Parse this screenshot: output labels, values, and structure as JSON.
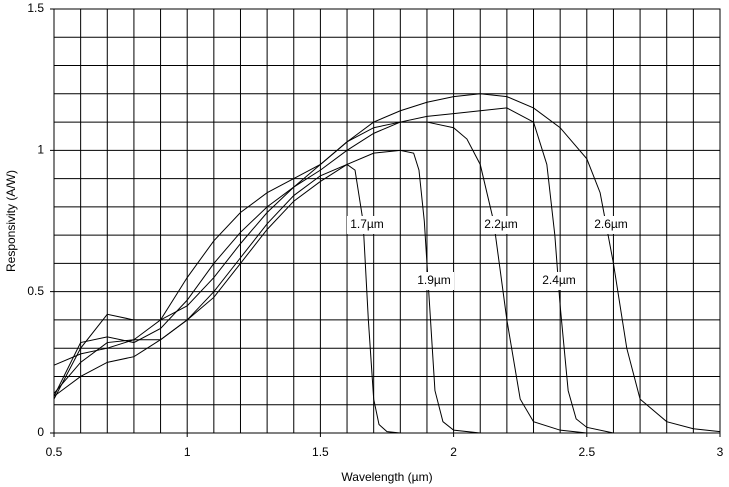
{
  "chart_data": {
    "type": "line",
    "xlabel": "Wavelength (µm)",
    "ylabel": "Responsivity (A/W)",
    "xlim": [
      0.5,
      3
    ],
    "ylim": [
      0,
      1.5
    ],
    "xticks": [
      0.5,
      1,
      1.5,
      2,
      2.5,
      3
    ],
    "yticks": [
      0,
      0.5,
      1,
      1.5
    ],
    "xgrid": [
      0.6,
      0.7,
      0.8,
      0.9,
      1.1,
      1.2,
      1.3,
      1.4,
      1.6,
      1.7,
      1.8,
      1.9,
      2.1,
      2.2,
      2.3,
      2.4,
      2.6,
      2.7,
      2.8,
      2.9
    ],
    "ygrid": [
      0.1,
      0.2,
      0.3,
      0.4,
      0.6,
      0.7,
      0.8,
      0.9,
      1.1,
      1.2,
      1.3,
      1.4
    ],
    "grid": true,
    "series": [
      {
        "name": "1.7µm",
        "color": "#000000",
        "x": [
          0.5,
          0.6,
          0.7,
          0.8,
          0.9,
          1.0,
          1.1,
          1.2,
          1.3,
          1.4,
          1.5,
          1.6,
          1.63,
          1.66,
          1.68,
          1.7,
          1.72,
          1.75,
          1.8
        ],
        "values": [
          0.14,
          0.25,
          0.32,
          0.33,
          0.33,
          0.4,
          0.5,
          0.62,
          0.74,
          0.84,
          0.91,
          0.95,
          0.93,
          0.75,
          0.4,
          0.12,
          0.03,
          0.005,
          0
        ]
      },
      {
        "name": "1.9µm",
        "color": "#000000",
        "x": [
          0.5,
          0.6,
          0.7,
          0.8,
          0.9,
          1.0,
          1.1,
          1.2,
          1.3,
          1.4,
          1.5,
          1.6,
          1.7,
          1.8,
          1.85,
          1.87,
          1.89,
          1.91,
          1.93,
          1.96,
          2.0,
          2.1
        ],
        "values": [
          0.13,
          0.2,
          0.25,
          0.27,
          0.33,
          0.4,
          0.48,
          0.6,
          0.72,
          0.82,
          0.89,
          0.95,
          0.99,
          1.0,
          0.99,
          0.93,
          0.75,
          0.45,
          0.15,
          0.04,
          0.01,
          0
        ]
      },
      {
        "name": "2.2µm",
        "color": "#000000",
        "x": [
          0.5,
          0.6,
          0.7,
          0.8,
          0.9,
          1.0,
          1.1,
          1.2,
          1.3,
          1.4,
          1.5,
          1.6,
          1.7,
          1.8,
          1.9,
          2.0,
          2.05,
          2.1,
          2.15,
          2.2,
          2.25,
          2.3,
          2.4,
          2.5
        ],
        "values": [
          0.12,
          0.3,
          0.42,
          0.4,
          0.4,
          0.45,
          0.55,
          0.67,
          0.78,
          0.87,
          0.95,
          1.03,
          1.08,
          1.1,
          1.1,
          1.08,
          1.04,
          0.95,
          0.75,
          0.4,
          0.12,
          0.04,
          0.01,
          0.0
        ]
      },
      {
        "name": "2.4µm",
        "color": "#000000",
        "x": [
          0.5,
          0.6,
          0.7,
          0.8,
          0.9,
          1.0,
          1.1,
          1.2,
          1.3,
          1.4,
          1.5,
          1.6,
          1.7,
          1.8,
          1.9,
          2.0,
          2.1,
          2.2,
          2.3,
          2.35,
          2.38,
          2.4,
          2.43,
          2.46,
          2.5,
          2.6
        ],
        "values": [
          0.13,
          0.32,
          0.34,
          0.32,
          0.37,
          0.47,
          0.6,
          0.71,
          0.8,
          0.87,
          0.93,
          1.0,
          1.06,
          1.1,
          1.12,
          1.13,
          1.14,
          1.15,
          1.1,
          0.95,
          0.7,
          0.45,
          0.15,
          0.05,
          0.02,
          0
        ]
      },
      {
        "name": "2.6µm",
        "color": "#000000",
        "x": [
          0.5,
          0.6,
          0.7,
          0.8,
          0.9,
          1.0,
          1.1,
          1.2,
          1.3,
          1.4,
          1.5,
          1.6,
          1.7,
          1.8,
          1.9,
          2.0,
          2.1,
          2.2,
          2.3,
          2.4,
          2.5,
          2.55,
          2.6,
          2.65,
          2.7,
          2.8,
          2.9,
          3.0
        ],
        "values": [
          0.24,
          0.28,
          0.3,
          0.33,
          0.4,
          0.55,
          0.68,
          0.78,
          0.85,
          0.9,
          0.95,
          1.03,
          1.1,
          1.14,
          1.17,
          1.19,
          1.2,
          1.19,
          1.15,
          1.08,
          0.97,
          0.85,
          0.6,
          0.3,
          0.12,
          0.04,
          0.015,
          0.005
        ]
      }
    ]
  }
}
